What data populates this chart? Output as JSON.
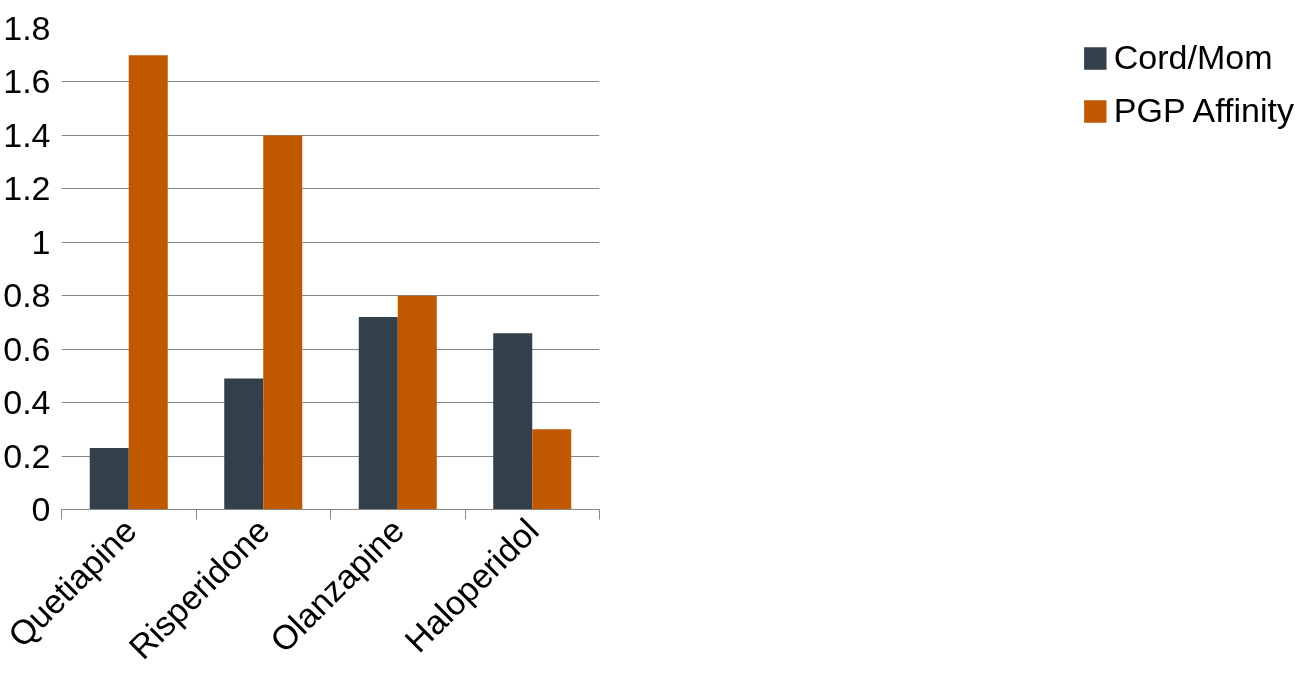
{
  "chart_data": {
    "type": "bar",
    "categories": [
      "Quetiapine",
      "Risperidone",
      "Olanzapine",
      "Haloperidol"
    ],
    "series": [
      {
        "name": "Cord/Mom",
        "color": "#333f4a",
        "values": [
          0.23,
          0.49,
          0.72,
          0.66
        ]
      },
      {
        "name": "PGP Affinity",
        "color": "#c05800",
        "values": [
          1.7,
          1.4,
          0.8,
          0.3
        ]
      }
    ],
    "ylim": [
      0,
      1.8
    ],
    "yticks": [
      0,
      0.2,
      0.4,
      0.6,
      0.8,
      1,
      1.2,
      1.4,
      1.6,
      1.8
    ],
    "grid": "y",
    "legend": "right"
  }
}
